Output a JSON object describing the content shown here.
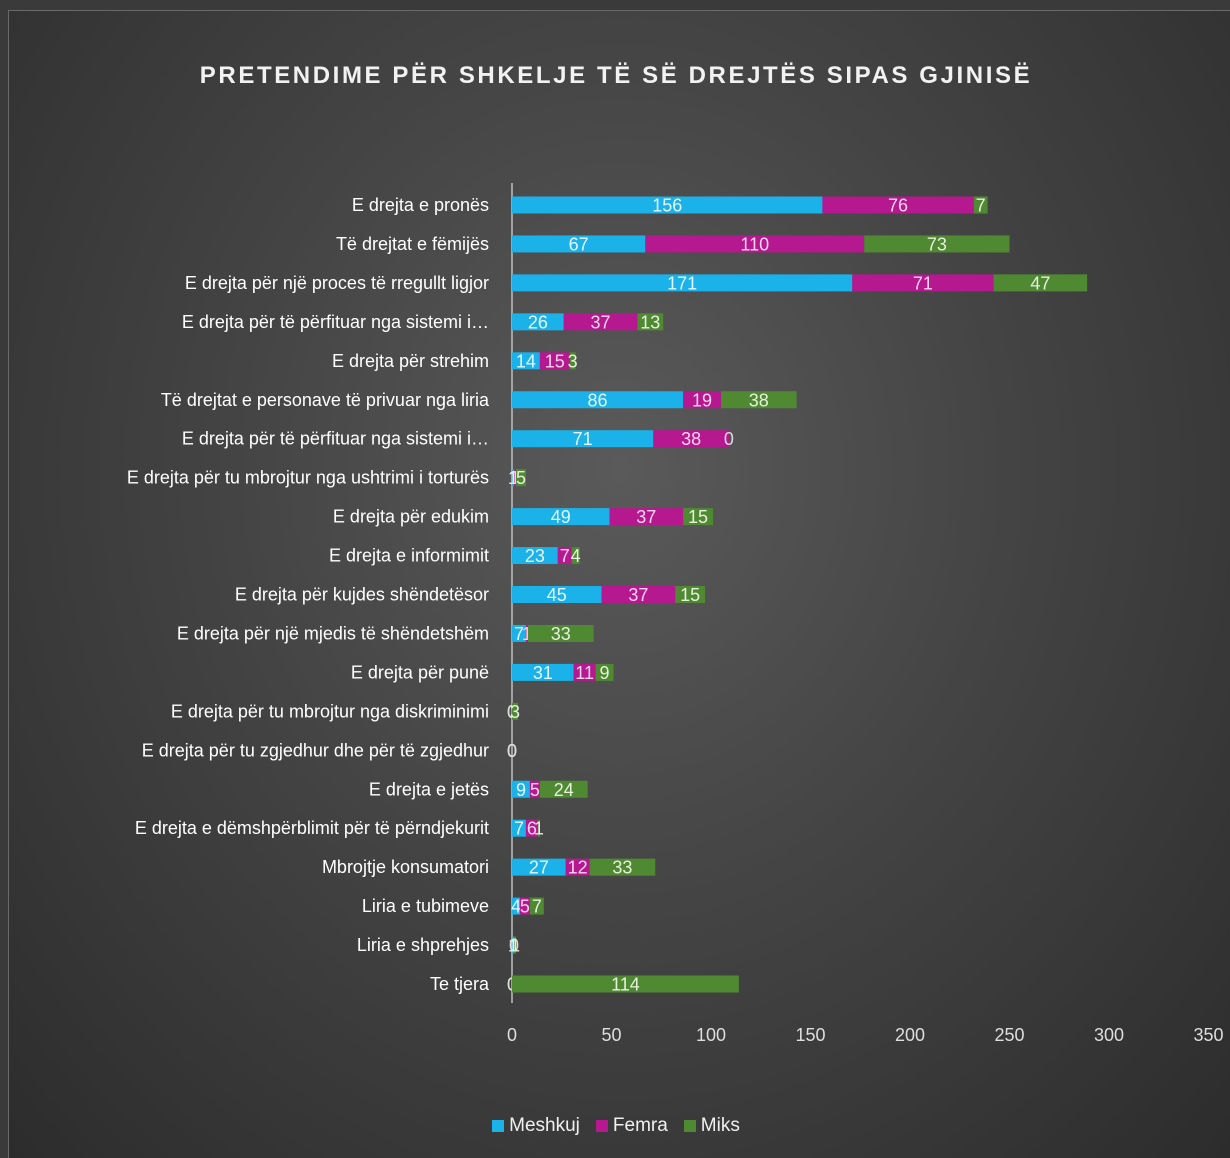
{
  "chart_data": {
    "type": "bar",
    "orientation": "horizontal",
    "stacked": true,
    "title": "PRETENDIME PËR SHKELJE TË SË DREJTËS SIPAS GJINISË",
    "categories": [
      "E drejta e pronës",
      "Të drejtat e fëmijës",
      "E drejta për një proces të rregullt ligjor",
      "E drejta për të përfituar nga sistemi i…",
      "E drejta për strehim",
      "Të drejtat e personave të privuar nga liria",
      "E drejta për të përfituar nga sistemi i…",
      "E drejta për tu mbrojtur nga ushtrimi i torturës",
      "E drejta për edukim",
      "E drejta e informimit",
      "E drejta për kujdes shëndetësor",
      "E drejta për një mjedis të shëndetshëm",
      "E drejta për punë",
      "E drejta për tu mbrojtur nga diskriminimi",
      "E drejta për tu zgjedhur dhe për të zgjedhur",
      "E drejta e jetës",
      "E drejta e dëmshpërblimit për të përndjekurit",
      "Mbrojtje konsumatori",
      "Liria e tubimeve",
      "Liria e shprehjes",
      "Te tjera"
    ],
    "series": [
      {
        "name": "Meshkuj",
        "color": "#1ab2e8",
        "values": [
          156,
          67,
          171,
          26,
          14,
          86,
          71,
          1,
          49,
          23,
          45,
          7,
          31,
          0,
          0,
          9,
          7,
          27,
          4,
          1,
          0
        ]
      },
      {
        "name": "Femra",
        "color": "#b5188f",
        "values": [
          76,
          110,
          71,
          37,
          15,
          19,
          38,
          1,
          37,
          7,
          37,
          1,
          11,
          0,
          0,
          5,
          6,
          12,
          5,
          0,
          0
        ]
      },
      {
        "name": "Miks",
        "color": "#4f8a33",
        "values": [
          7,
          73,
          47,
          13,
          3,
          38,
          0,
          5,
          15,
          4,
          15,
          33,
          9,
          3,
          0,
          24,
          1,
          33,
          7,
          1,
          114
        ]
      }
    ],
    "xlim": [
      0,
      350
    ],
    "xticks": [
      0,
      50,
      100,
      150,
      200,
      250,
      300,
      350
    ],
    "xlabel": "",
    "ylabel": "",
    "grid": false,
    "legend_position": "bottom"
  }
}
